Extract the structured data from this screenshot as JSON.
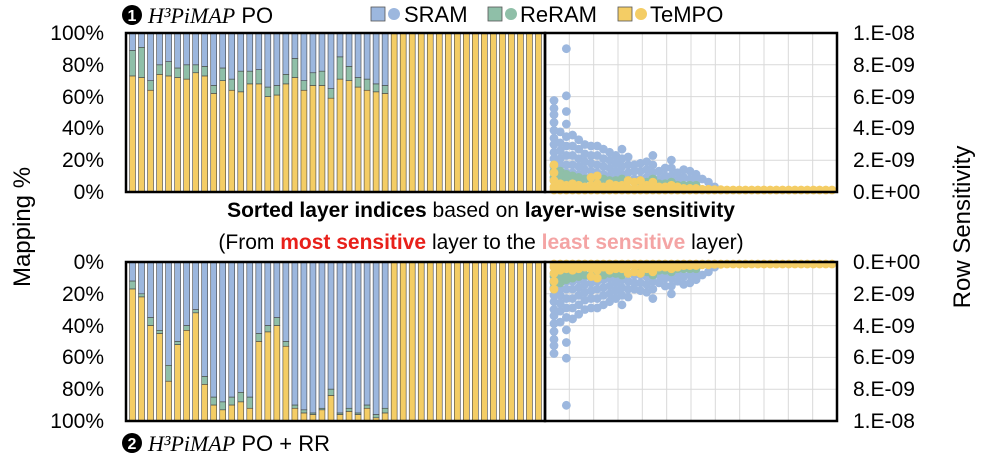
{
  "panels": {
    "top": {
      "badge": "1",
      "title_italic": "H³PiMAP",
      "title_suffix": " PO"
    },
    "bottom": {
      "badge": "2",
      "title_italic": "H³PiMAP",
      "title_suffix": " PO + RR"
    }
  },
  "caption": {
    "line1_bold_a": "Sorted layer indices",
    "line1_mid": " based on ",
    "line1_bold_b": "layer-wise sensitivity",
    "line2_a": "(From ",
    "line2_red": "most sensitive",
    "line2_b": " layer to the ",
    "line2_pink": "least sensitive",
    "line2_c": " layer)"
  },
  "colors": {
    "sram": "#9cb7de",
    "reram": "#8fbfa8",
    "tempo": "#f4cd65",
    "most": "#e8201a",
    "least": "#f4a4a4"
  },
  "chart_data": [
    {
      "type": "bar",
      "subtype": "stacked-100",
      "ylabel": "Mapping %",
      "yticks": [
        "0%",
        "20%",
        "40%",
        "60%",
        "80%",
        "100%"
      ],
      "ylim": [
        0,
        100
      ],
      "series": [
        {
          "name": "TeMPO",
          "values": [
            73,
            72,
            64,
            74,
            73,
            72,
            71,
            75,
            73,
            62,
            70,
            64,
            63,
            68,
            68,
            60,
            61,
            68,
            72,
            64,
            67,
            67,
            59,
            71,
            70,
            66,
            64,
            63,
            62,
            100,
            100,
            100,
            100,
            100,
            100,
            100,
            100,
            100,
            100,
            100,
            100,
            100,
            100,
            100,
            100,
            100
          ]
        },
        {
          "name": "ReRAM",
          "values": [
            16,
            19,
            6,
            6,
            9,
            6,
            9,
            5,
            6,
            5,
            8,
            7,
            13,
            8,
            9,
            6,
            6,
            6,
            12,
            6,
            8,
            9,
            6,
            14,
            9,
            6,
            7,
            5,
            5,
            0,
            0,
            0,
            0,
            0,
            0,
            0,
            0,
            0,
            0,
            0,
            0,
            0,
            0,
            0,
            0,
            0
          ]
        },
        {
          "name": "SRAM",
          "values": [
            11,
            9,
            30,
            20,
            18,
            22,
            20,
            20,
            21,
            33,
            22,
            29,
            24,
            24,
            23,
            34,
            33,
            26,
            16,
            30,
            25,
            24,
            35,
            15,
            21,
            28,
            29,
            32,
            33,
            0,
            0,
            0,
            0,
            0,
            0,
            0,
            0,
            0,
            0,
            0,
            0,
            0,
            0,
            0,
            0,
            0
          ]
        }
      ]
    },
    {
      "type": "bar",
      "subtype": "stacked-100",
      "ylabel": "Mapping %",
      "yticks": [
        "0%",
        "20%",
        "40%",
        "60%",
        "80%",
        "100%"
      ],
      "ylim": [
        0,
        100
      ],
      "inverted": true,
      "series": [
        {
          "name": "SRAM",
          "values": [
            12,
            20,
            35,
            43,
            65,
            50,
            40,
            30,
            72,
            85,
            88,
            85,
            82,
            85,
            45,
            40,
            35,
            50,
            90,
            93,
            95,
            92,
            80,
            95,
            92,
            95,
            90,
            96,
            92,
            0,
            0,
            0,
            0,
            0,
            0,
            0,
            0,
            0,
            0,
            0,
            0,
            0,
            0,
            0,
            0,
            0
          ]
        },
        {
          "name": "ReRAM",
          "values": [
            5,
            2,
            5,
            2,
            10,
            2,
            3,
            2,
            5,
            5,
            5,
            5,
            6,
            7,
            5,
            4,
            5,
            3,
            2,
            2,
            1,
            1,
            4,
            1,
            2,
            1,
            2,
            2,
            3,
            0,
            0,
            0,
            0,
            0,
            0,
            0,
            0,
            0,
            0,
            0,
            0,
            0,
            0,
            0,
            0,
            0
          ]
        },
        {
          "name": "TeMPO",
          "values": [
            83,
            78,
            60,
            55,
            25,
            48,
            57,
            68,
            23,
            10,
            7,
            10,
            12,
            8,
            50,
            56,
            60,
            47,
            8,
            5,
            4,
            7,
            16,
            4,
            6,
            4,
            8,
            2,
            5,
            100,
            100,
            100,
            100,
            100,
            100,
            100,
            100,
            100,
            100,
            100,
            100,
            100,
            100,
            100,
            100,
            100
          ]
        }
      ]
    },
    {
      "type": "scatter",
      "ylabel": "Row Sensitivity",
      "yticks": [
        "0.E+00",
        "2.E-09",
        "4.E-09",
        "6.E-09",
        "8.E-09",
        "1.E-08"
      ],
      "ylim": [
        0,
        1e-08
      ],
      "columns": 46,
      "series": [
        {
          "name": "SRAM",
          "columns": [
            [
              5.7e-09,
              5.2e-09,
              4.8e-09,
              4.3e-09,
              3.8e-09,
              3.3e-09,
              2.9e-09,
              2.4e-09,
              2e-09,
              1.5e-09,
              1.1e-09,
              6e-10
            ],
            [
              3.7e-09,
              3e-09,
              2.5e-09,
              2e-09,
              1.6e-09,
              1.1e-09,
              6e-10
            ],
            [
              9e-09,
              6e-09,
              5e-09,
              4.2e-09,
              3.4e-09,
              2.8e-09,
              2.2e-09,
              1.6e-09,
              1.1e-09,
              6e-10
            ],
            [
              3.5e-09,
              2.8e-09,
              2.2e-09,
              1.6e-09,
              1.1e-09,
              6e-10
            ],
            [
              3.2e-09,
              2.6e-09,
              2e-09,
              1.5e-09,
              1e-09,
              5e-10
            ],
            [
              2.9e-09,
              2.3e-09,
              1.8e-09,
              1.3e-09,
              8e-10
            ],
            [
              2.8e-09,
              2.2e-09,
              1.7e-09,
              1.2e-09,
              7e-10
            ],
            [
              2.8e-09,
              2.2e-09,
              1.6e-09,
              1.1e-09,
              6e-10
            ],
            [
              2.6e-09,
              2e-09,
              1.5e-09,
              1e-09,
              5e-10
            ],
            [
              2.4e-09,
              1.9e-09,
              1.4e-09,
              9e-10,
              5e-10
            ],
            [
              2.2e-09,
              1.7e-09,
              1.2e-09,
              7e-10
            ],
            [
              2.6e-09,
              2e-09,
              1.5e-09,
              1e-09,
              5e-10
            ],
            [
              2.1e-09,
              1.6e-09,
              1.1e-09,
              6e-10
            ],
            [
              1.6e-09,
              1.2e-09,
              7e-10
            ],
            [
              1.7e-09,
              1.2e-09,
              7e-10
            ],
            [
              1.8e-09,
              1.3e-09,
              8e-10
            ],
            [
              2.2e-09,
              1.6e-09,
              1.1e-09,
              6e-10
            ],
            [
              1.2e-09,
              7e-10
            ],
            [
              1.4e-09,
              9e-10,
              5e-10
            ],
            [
              1.9e-09,
              1.4e-09,
              9e-10,
              5e-10
            ],
            [
              1.1e-09,
              6e-10
            ],
            [
              1.3e-09,
              8e-10
            ],
            [
              1.2e-09,
              7e-10
            ],
            [
              1e-09,
              6e-10
            ],
            [
              7e-10
            ],
            [
              5e-10
            ],
            [
              2e-10
            ]
          ]
        },
        {
          "name": "ReRAM",
          "columns": [
            [
              1.6e-09,
              1.2e-09,
              8e-10
            ],
            [
              1.2e-09,
              8e-10
            ],
            [
              1e-09,
              6e-10
            ],
            [
              9e-10,
              5e-10
            ],
            [
              8e-10,
              4e-10
            ],
            [
              7e-10
            ],
            [
              7e-10
            ],
            [
              6e-10
            ],
            [
              7e-10
            ],
            [
              6e-10
            ],
            [
              6e-10
            ],
            [
              7e-10
            ],
            [
              6e-10
            ],
            [
              5e-10
            ],
            [
              5e-10
            ],
            [
              5e-10
            ],
            [
              7e-10
            ],
            [
              4e-10
            ],
            [
              4e-10
            ],
            [
              5e-10
            ],
            [
              3e-10
            ],
            [
              3e-10
            ],
            [
              3e-10
            ],
            [
              3e-10
            ]
          ]
        },
        {
          "name": "TeMPO",
          "columns": [
            [
              1.6e-09,
              1.1e-09,
              6e-10,
              2e-10
            ],
            [
              4e-10,
              1e-10
            ],
            [
              3e-10,
              5e-11
            ],
            [
              4e-10,
              5e-11
            ],
            [
              3e-10,
              5e-11
            ],
            [
              2e-10,
              5e-11
            ],
            [
              8e-10,
              3e-10,
              5e-11
            ],
            [
              9e-10,
              4e-10,
              5e-11
            ],
            [
              2e-10,
              5e-11
            ],
            [
              4e-10,
              5e-11
            ],
            [
              3e-10,
              5e-11
            ],
            [
              3e-10,
              5e-11
            ],
            [
              6e-10,
              1e-10
            ],
            [
              5e-10,
              5e-11
            ],
            [
              6e-10,
              1e-10
            ],
            [
              3e-10,
              5e-11
            ],
            [
              5e-10,
              5e-11
            ],
            [
              2e-10,
              5e-11
            ],
            [
              2e-10,
              5e-11
            ],
            [
              3e-10,
              5e-11
            ],
            [
              2e-10,
              5e-11
            ],
            [
              1e-10,
              2e-11
            ],
            [
              1e-10,
              2e-11
            ],
            [
              1e-10,
              2e-11
            ],
            [
              5e-11
            ],
            [
              5e-11
            ],
            [
              2e-11
            ],
            [
              2e-11
            ]
          ]
        }
      ]
    }
  ]
}
